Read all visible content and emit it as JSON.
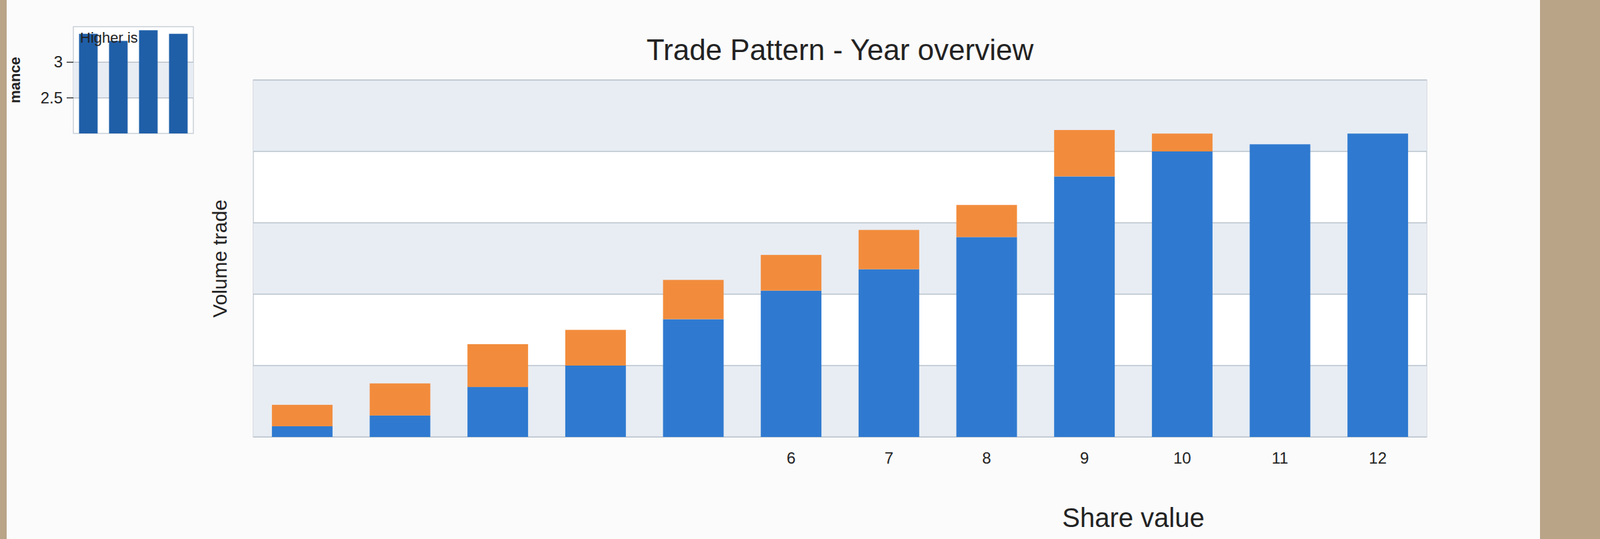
{
  "chart_data": [
    {
      "type": "bar",
      "title": "Trade Pattern - Year overview",
      "y_label": "Volume trade",
      "annotation": "Share value",
      "categories": [
        null,
        null,
        null,
        null,
        null,
        "6",
        "7",
        "8",
        "9",
        "10",
        "11",
        "12"
      ],
      "series": [
        {
          "color": "#2f7ad0",
          "values": [
            3,
            6,
            14,
            20,
            33,
            41,
            47,
            56,
            73,
            80,
            82,
            85
          ]
        },
        {
          "color": "#f28c3c",
          "values": [
            6,
            9,
            12,
            10,
            11,
            10,
            11,
            9,
            13,
            5,
            null,
            null
          ]
        }
      ],
      "stacked": true,
      "ylim": [
        0,
        100
      ],
      "yticks": [
        0,
        20,
        40,
        60,
        80,
        100
      ],
      "grid": true,
      "tick_labels": "x"
    },
    {
      "type": "bar",
      "annotation": "Higher is",
      "y_label": "mance",
      "categories": [
        null,
        null,
        null,
        null
      ],
      "values": [
        3.4,
        3.3,
        3.45,
        3.4
      ],
      "color": "#1f5fa8",
      "ylim": [
        2,
        3.5
      ],
      "yticks": [
        2.5,
        3
      ],
      "grid": true,
      "tick_labels": "y"
    }
  ]
}
